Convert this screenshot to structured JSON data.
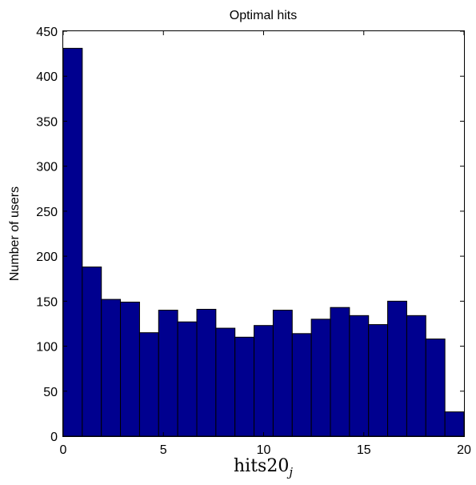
{
  "chart_data": {
    "type": "bar",
    "title": "Optimal hits",
    "xlabel": "hits20",
    "xlabel_subscript": "j",
    "ylabel": "Number of users",
    "xlim": [
      0,
      20
    ],
    "ylim": [
      0,
      450
    ],
    "xticks": [
      0,
      5,
      10,
      15,
      20
    ],
    "yticks": [
      0,
      50,
      100,
      150,
      200,
      250,
      300,
      350,
      400,
      450
    ],
    "bin_edges": [
      0,
      0.952,
      1.905,
      2.857,
      3.81,
      4.762,
      5.714,
      6.667,
      7.619,
      8.571,
      9.524,
      10.476,
      11.429,
      12.381,
      13.333,
      14.286,
      15.238,
      16.19,
      17.143,
      18.095,
      19.048,
      20
    ],
    "values": [
      431,
      188,
      152,
      149,
      115,
      140,
      127,
      141,
      120,
      110,
      123,
      140,
      114,
      130,
      143,
      134,
      124,
      150,
      134,
      108,
      27
    ],
    "bar_color": "#00008f",
    "grid": false
  }
}
